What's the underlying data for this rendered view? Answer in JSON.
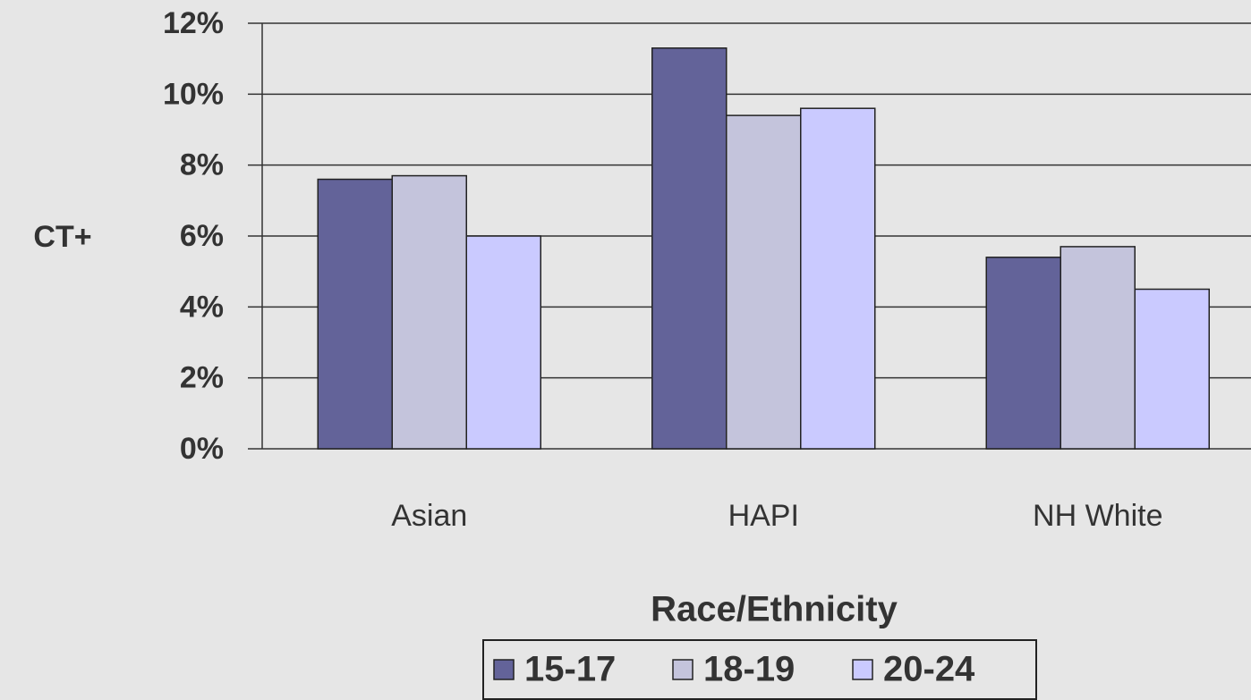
{
  "chart_data": {
    "type": "bar",
    "y_label": "CT+",
    "x_label": "Race/Ethnicity",
    "categories": [
      "Asian",
      "HAPI",
      "NH White"
    ],
    "series": [
      {
        "name": "15-17",
        "color": "#636399",
        "values": [
          7.6,
          11.3,
          5.4
        ]
      },
      {
        "name": "18-19",
        "color": "#c4c4dc",
        "values": [
          7.7,
          9.4,
          5.7
        ]
      },
      {
        "name": "20-24",
        "color": "#cacaff",
        "values": [
          6.0,
          9.6,
          4.5
        ]
      }
    ],
    "ylim": [
      0,
      12
    ],
    "yticks": [
      {
        "value": 0,
        "label": "0%"
      },
      {
        "value": 2,
        "label": "2%"
      },
      {
        "value": 4,
        "label": "4%"
      },
      {
        "value": 6,
        "label": "6%"
      },
      {
        "value": 8,
        "label": "8%"
      },
      {
        "value": 10,
        "label": "10%"
      },
      {
        "value": 12,
        "label": "12%"
      }
    ],
    "grid": true,
    "legend": "bottom"
  }
}
